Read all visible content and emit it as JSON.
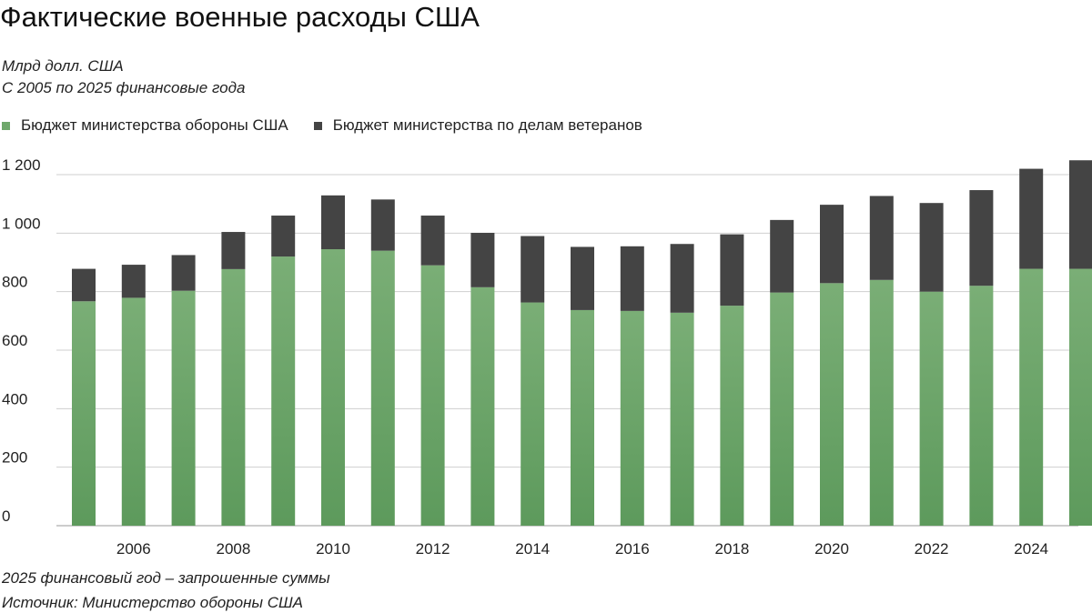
{
  "chart_data": {
    "type": "bar",
    "stacked": true,
    "title": "Фактические военные расходы США",
    "subtitle_lines": [
      "Млрд долл. США",
      "С 2005 по 2025 финансовые года"
    ],
    "categories": [
      "2005",
      "2006",
      "2007",
      "2008",
      "2009",
      "2010",
      "2011",
      "2012",
      "2013",
      "2014",
      "2015",
      "2016",
      "2017",
      "2018",
      "2019",
      "2020",
      "2021",
      "2022",
      "2023",
      "2024",
      "2025"
    ],
    "x_tick_labels": [
      "2006",
      "2008",
      "2010",
      "2012",
      "2014",
      "2016",
      "2018",
      "2020",
      "2022",
      "2024"
    ],
    "series": [
      {
        "name": "Бюджет министерства обороны США",
        "color": "#6fa86c",
        "values": [
          767,
          779,
          803,
          877,
          920,
          945,
          940,
          890,
          815,
          763,
          737,
          734,
          728,
          752,
          797,
          829,
          840,
          800,
          820,
          878,
          878
        ]
      },
      {
        "name": "Бюджет министерства по делам ветеранов",
        "color": "#444444",
        "values": [
          111,
          113,
          122,
          127,
          140,
          184,
          175,
          170,
          186,
          227,
          216,
          221,
          235,
          244,
          248,
          268,
          287,
          303,
          327,
          342,
          371
        ]
      }
    ],
    "ylim": [
      0,
      1250
    ],
    "y_ticks": [
      0,
      200,
      400,
      600,
      800,
      1000,
      1200
    ],
    "y_tick_labels": [
      "0",
      "200",
      "400",
      "600",
      "800",
      "1 000",
      "1 200"
    ],
    "grid": true,
    "legend_position": "top-left"
  },
  "notes": [
    "2025 финансовый год – запрошенные суммы",
    "Источник: Министерство обороны США"
  ]
}
